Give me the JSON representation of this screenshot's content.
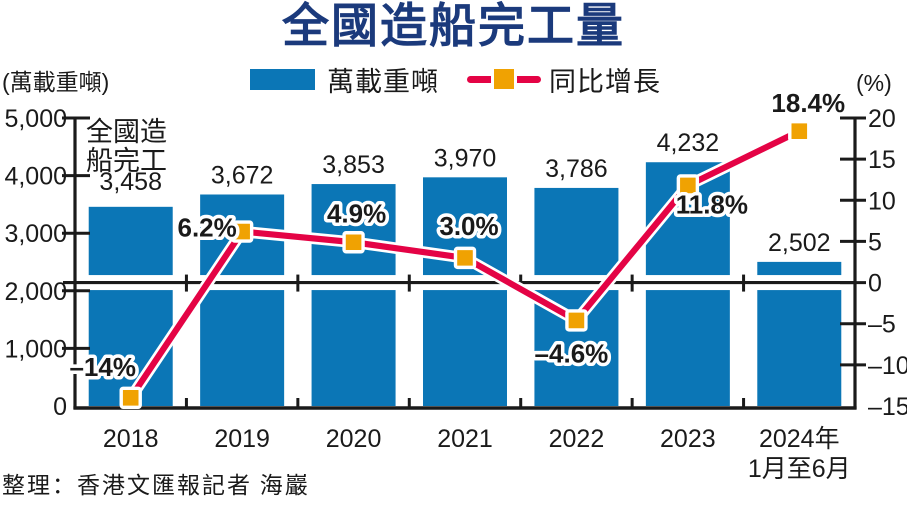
{
  "title": "全國造船完工量",
  "legend": {
    "bar_label": "萬載重噸",
    "line_label": "同比增長"
  },
  "left_axis_unit": "(萬載重噸)",
  "right_axis_unit": "(%)",
  "annotation": {
    "line1": "全國造",
    "line2": "船完工"
  },
  "footer": "整理：香港文匯報記者  海巖",
  "colors": {
    "bar_blue": "#0b76b6",
    "line_red": "#e40345",
    "marker_orange": "#f0a202",
    "title_navy": "#1b3a7c",
    "axis_black": "#1a1a1a",
    "pct_red": "#e40345"
  },
  "chart_data": {
    "type": "bar+line combo",
    "title": "全國造船完工量",
    "categories": [
      "2018",
      "2019",
      "2020",
      "2021",
      "2022",
      "2023",
      "2024年\n1月至6月"
    ],
    "series": [
      {
        "name": "萬載重噸",
        "type": "bar",
        "axis": "left",
        "values": [
          3458,
          3672,
          3853,
          3970,
          3786,
          4232,
          2502
        ],
        "labels": [
          "3,458",
          "3,672",
          "3,853",
          "3,970",
          "3,786",
          "4,232",
          "2,502"
        ]
      },
      {
        "name": "同比增長",
        "type": "line",
        "axis": "right",
        "values": [
          -14,
          6.2,
          4.9,
          3.0,
          -4.6,
          11.8,
          18.4
        ],
        "labels": [
          "–14%",
          "6.2%",
          "4.9%",
          "3.0%",
          "–4.6%",
          "11.8%",
          "18.4%"
        ],
        "label_offsets": [
          [
            -28,
            -31
          ],
          [
            -35,
            -4
          ],
          [
            3,
            -29
          ],
          [
            4,
            -32
          ],
          [
            -5,
            33
          ],
          [
            24,
            19
          ],
          [
            9,
            -28
          ]
        ]
      }
    ],
    "left_axis": {
      "min": 0,
      "max": 5000,
      "tick_step": 1000,
      "tick_labels": [
        "0",
        "1,000",
        "2,000",
        "3,000",
        "4,000",
        "5,000"
      ]
    },
    "right_axis": {
      "min": -15,
      "max": 20,
      "tick_step": 5,
      "tick_labels": [
        "–15",
        "–10",
        "–5",
        "0",
        "5",
        "10",
        "15",
        "20"
      ]
    },
    "grid": false,
    "legend_position": "top",
    "zero_line": true
  }
}
